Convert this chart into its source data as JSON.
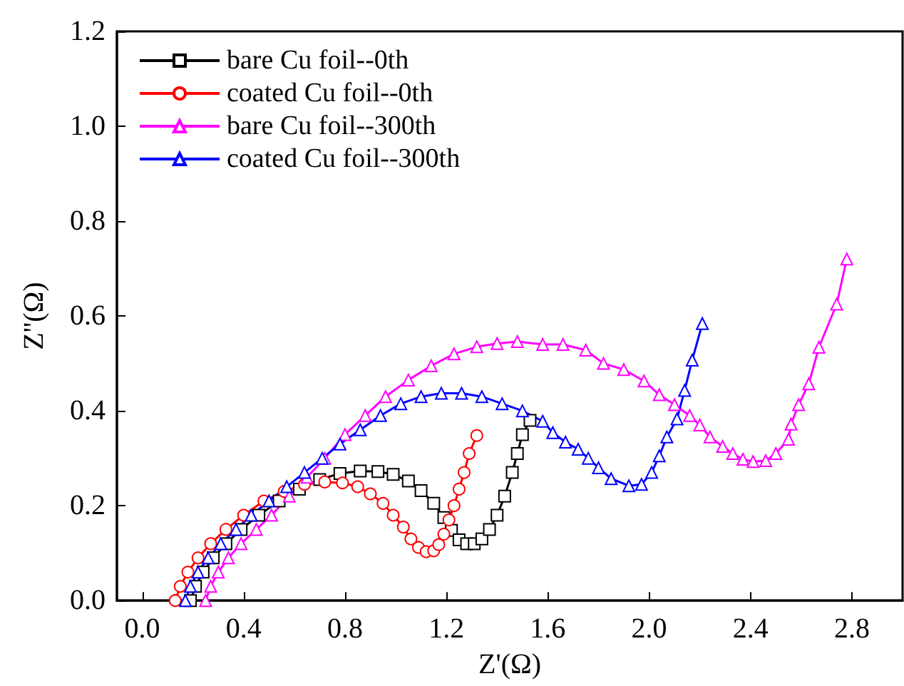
{
  "chart_data": {
    "type": "line",
    "xlabel": "Z'(Ω)",
    "ylabel": "Z''(Ω)",
    "xlim": [
      -0.1,
      3.0
    ],
    "ylim": [
      0,
      1.2
    ],
    "xticks": [
      {
        "value": 0,
        "label": "0.0"
      },
      {
        "value": 0.4,
        "label": "0.4"
      },
      {
        "value": 0.8,
        "label": "0.8"
      },
      {
        "value": 1.2,
        "label": "1.2"
      },
      {
        "value": 1.6,
        "label": "1.6"
      },
      {
        "value": 2.0,
        "label": "2.0"
      },
      {
        "value": 2.4,
        "label": "2.4"
      },
      {
        "value": 2.8,
        "label": "2.8"
      }
    ],
    "yticks": [
      {
        "value": 0,
        "label": "0.0"
      },
      {
        "value": 0.2,
        "label": "0.2"
      },
      {
        "value": 0.4,
        "label": "0.4"
      },
      {
        "value": 0.6,
        "label": "0.6"
      },
      {
        "value": 0.8,
        "label": "0.8"
      },
      {
        "value": 1.0,
        "label": "1.0"
      },
      {
        "value": 1.2,
        "label": "1.2"
      }
    ],
    "grid": false,
    "legend": "top left",
    "line_style": "solid",
    "series": [
      {
        "name": "bare Cu foil--0th",
        "color": "#000000",
        "marker": "square",
        "x": [
          0.19,
          0.21,
          0.24,
          0.28,
          0.33,
          0.39,
          0.46,
          0.54,
          0.62,
          0.7,
          0.78,
          0.86,
          0.93,
          0.99,
          1.05,
          1.1,
          1.15,
          1.19,
          1.22,
          1.25,
          1.28,
          1.31,
          1.34,
          1.37,
          1.4,
          1.43,
          1.46,
          1.48,
          1.5,
          1.53
        ],
        "values": [
          0,
          0.03,
          0.06,
          0.09,
          0.12,
          0.15,
          0.18,
          0.21,
          0.235,
          0.255,
          0.268,
          0.273,
          0.272,
          0.266,
          0.252,
          0.232,
          0.205,
          0.175,
          0.148,
          0.128,
          0.12,
          0.12,
          0.13,
          0.15,
          0.18,
          0.22,
          0.27,
          0.31,
          0.35,
          0.38
        ]
      },
      {
        "name": "coated Cu foil--0th",
        "color": "#ff0000",
        "marker": "circle",
        "x": [
          0.13,
          0.15,
          0.18,
          0.22,
          0.27,
          0.33,
          0.4,
          0.48,
          0.56,
          0.64,
          0.72,
          0.79,
          0.85,
          0.9,
          0.95,
          0.99,
          1.03,
          1.06,
          1.09,
          1.12,
          1.15,
          1.17,
          1.19,
          1.21,
          1.23,
          1.25,
          1.27,
          1.29,
          1.32
        ],
        "values": [
          0,
          0.03,
          0.06,
          0.09,
          0.12,
          0.15,
          0.18,
          0.21,
          0.23,
          0.245,
          0.25,
          0.248,
          0.24,
          0.225,
          0.205,
          0.18,
          0.155,
          0.13,
          0.112,
          0.103,
          0.105,
          0.118,
          0.14,
          0.17,
          0.2,
          0.235,
          0.27,
          0.31,
          0.348
        ]
      },
      {
        "name": "bare Cu foil--300th",
        "color": "#ff00ff",
        "marker": "triangle",
        "x": [
          0.25,
          0.27,
          0.3,
          0.34,
          0.39,
          0.45,
          0.51,
          0.58,
          0.65,
          0.72,
          0.8,
          0.88,
          0.96,
          1.05,
          1.14,
          1.23,
          1.32,
          1.4,
          1.48,
          1.58,
          1.66,
          1.75,
          1.82,
          1.9,
          1.98,
          2.04,
          2.1,
          2.16,
          2.2,
          2.24,
          2.29,
          2.33,
          2.37,
          2.41,
          2.46,
          2.5,
          2.55,
          2.56,
          2.59,
          2.63,
          2.67,
          2.74,
          2.78
        ],
        "values": [
          0,
          0.03,
          0.06,
          0.09,
          0.12,
          0.15,
          0.18,
          0.22,
          0.26,
          0.3,
          0.35,
          0.39,
          0.43,
          0.465,
          0.495,
          0.52,
          0.535,
          0.542,
          0.546,
          0.54,
          0.54,
          0.528,
          0.5,
          0.487,
          0.463,
          0.434,
          0.413,
          0.39,
          0.37,
          0.345,
          0.325,
          0.31,
          0.298,
          0.293,
          0.295,
          0.31,
          0.34,
          0.372,
          0.413,
          0.457,
          0.534,
          0.625,
          0.72
        ]
      },
      {
        "name": "coated Cu foil--300th",
        "color": "#0000ff",
        "marker": "triangle",
        "x": [
          0.17,
          0.19,
          0.22,
          0.26,
          0.31,
          0.37,
          0.43,
          0.5,
          0.57,
          0.64,
          0.71,
          0.78,
          0.86,
          0.94,
          1.02,
          1.1,
          1.18,
          1.26,
          1.34,
          1.42,
          1.5,
          1.58,
          1.62,
          1.67,
          1.72,
          1.76,
          1.8,
          1.85,
          1.92,
          1.97,
          2.01,
          2.04,
          2.07,
          2.11,
          2.14,
          2.17,
          2.21
        ],
        "values": [
          0,
          0.03,
          0.06,
          0.09,
          0.12,
          0.15,
          0.18,
          0.21,
          0.24,
          0.27,
          0.3,
          0.33,
          0.36,
          0.39,
          0.415,
          0.43,
          0.437,
          0.437,
          0.43,
          0.415,
          0.4,
          0.378,
          0.354,
          0.334,
          0.319,
          0.3,
          0.28,
          0.257,
          0.242,
          0.245,
          0.27,
          0.305,
          0.345,
          0.383,
          0.443,
          0.507,
          0.584
        ]
      }
    ]
  }
}
